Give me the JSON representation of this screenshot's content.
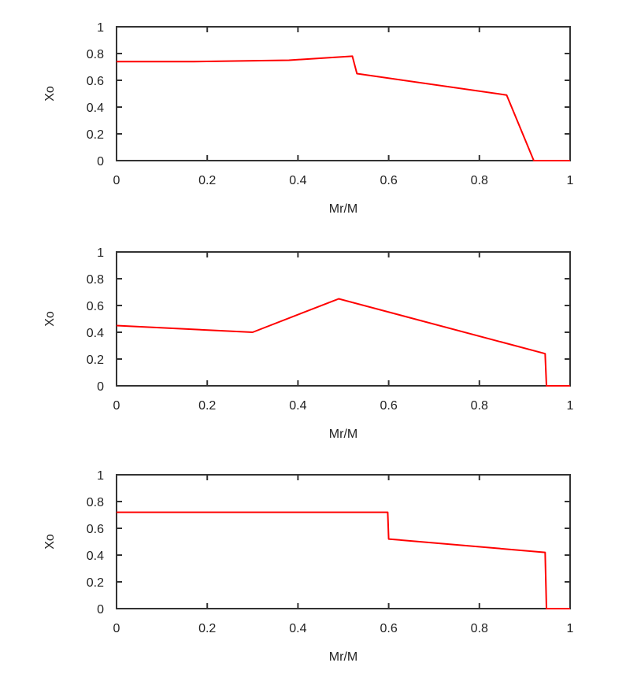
{
  "chart_data": [
    {
      "type": "line",
      "xlabel": "Mr/M",
      "ylabel": "Xo",
      "xlim": [
        0,
        1
      ],
      "ylim": [
        0,
        1
      ],
      "xticks": [
        "0",
        "0.2",
        "0.4",
        "0.6",
        "0.8",
        "1"
      ],
      "yticks": [
        "0",
        "0.2",
        "0.4",
        "0.6",
        "0.8",
        "1"
      ],
      "grid": false,
      "line_color": "#ff0000",
      "series": [
        {
          "x": [
            0,
            0.17,
            0.38,
            0.52,
            0.53,
            0.86,
            0.92,
            1.0
          ],
          "y": [
            0.74,
            0.74,
            0.75,
            0.78,
            0.65,
            0.49,
            0.0,
            0.0
          ]
        }
      ]
    },
    {
      "type": "line",
      "xlabel": "Mr/M",
      "ylabel": "Xo",
      "xlim": [
        0,
        1
      ],
      "ylim": [
        0,
        1
      ],
      "xticks": [
        "0",
        "0.2",
        "0.4",
        "0.6",
        "0.8",
        "1"
      ],
      "yticks": [
        "0",
        "0.2",
        "0.4",
        "0.6",
        "0.8",
        "1"
      ],
      "grid": false,
      "line_color": "#ff0000",
      "series": [
        {
          "x": [
            0,
            0.3,
            0.49,
            0.945,
            0.948,
            1.0
          ],
          "y": [
            0.45,
            0.4,
            0.65,
            0.24,
            0.0,
            0.0
          ]
        }
      ]
    },
    {
      "type": "line",
      "xlabel": "Mr/M",
      "ylabel": "Xo",
      "xlim": [
        0,
        1
      ],
      "ylim": [
        0,
        1
      ],
      "xticks": [
        "0",
        "0.2",
        "0.4",
        "0.6",
        "0.8",
        "1"
      ],
      "yticks": [
        "0",
        "0.2",
        "0.4",
        "0.6",
        "0.8",
        "1"
      ],
      "grid": false,
      "line_color": "#ff0000",
      "series": [
        {
          "x": [
            0,
            0.598,
            0.6,
            0.945,
            0.948,
            1.0
          ],
          "y": [
            0.72,
            0.72,
            0.52,
            0.42,
            0.0,
            0.0
          ]
        }
      ]
    }
  ]
}
